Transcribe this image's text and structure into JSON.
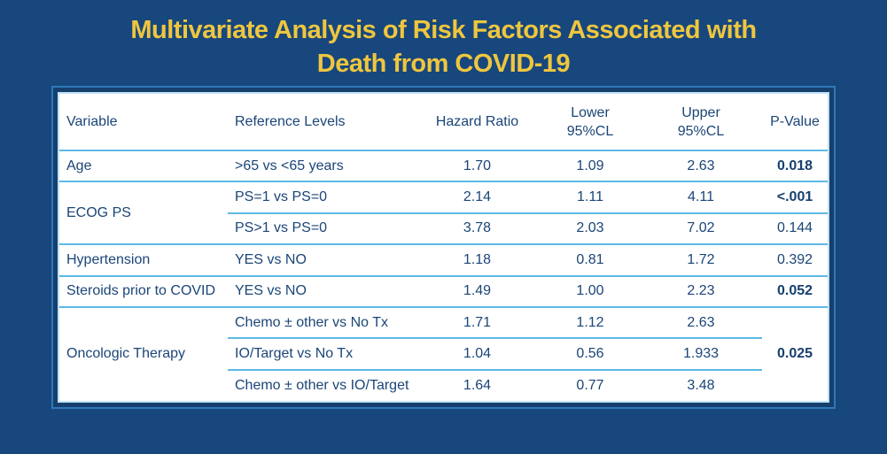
{
  "title": {
    "line1": "Multivariate Analysis of Risk Factors Associated with",
    "line2": "Death from COVID-19"
  },
  "colors": {
    "background": "#17477D",
    "title_text": "#EFC63E",
    "table_text": "#1B4577",
    "row_separator": "#5EB9E6",
    "frame_outer_line": "#2F79B9",
    "frame_border": "#163F6E",
    "frame_inner_line": "#BFE3F4",
    "table_background": "#FFFFFF"
  },
  "table": {
    "headers": {
      "variable": "Variable",
      "reference": "Reference Levels",
      "hazard_ratio": "Hazard Ratio",
      "lower_line1": "Lower",
      "lower_line2": "95%CL",
      "upper_line1": "Upper",
      "upper_line2": "95%CL",
      "p_value": "P-Value"
    },
    "groups": [
      {
        "variable": "Age",
        "rows": [
          {
            "reference": ">65 vs <65 years",
            "hr": "1.70",
            "lower": "1.09",
            "upper": "2.63",
            "p": "0.018",
            "p_bold": true
          }
        ]
      },
      {
        "variable": "ECOG PS",
        "rows": [
          {
            "reference": "PS=1 vs PS=0",
            "hr": "2.14",
            "lower": "1.11",
            "upper": "4.11",
            "p": "<.001",
            "p_bold": true
          },
          {
            "reference": "PS>1 vs PS=0",
            "hr": "3.78",
            "lower": "2.03",
            "upper": "7.02",
            "p": "0.144",
            "p_bold": false
          }
        ]
      },
      {
        "variable": "Hypertension",
        "rows": [
          {
            "reference": "YES vs NO",
            "hr": "1.18",
            "lower": "0.81",
            "upper": "1.72",
            "p": "0.392",
            "p_bold": false
          }
        ]
      },
      {
        "variable": "Steroids prior to COVID",
        "rows": [
          {
            "reference": "YES vs NO",
            "hr": "1.49",
            "lower": "1.00",
            "upper": "2.23",
            "p": "0.052",
            "p_bold": true
          }
        ]
      },
      {
        "variable": "Oncologic Therapy",
        "shared_p": "0.025",
        "shared_p_bold": true,
        "rows": [
          {
            "reference": "Chemo ± other vs No Tx",
            "hr": "1.71",
            "lower": "1.12",
            "upper": "2.63"
          },
          {
            "reference": "IO/Target vs No Tx",
            "hr": "1.04",
            "lower": "0.56",
            "upper": "1.933"
          },
          {
            "reference": "Chemo ± other vs IO/Target",
            "hr": "1.64",
            "lower": "0.77",
            "upper": "3.48"
          }
        ]
      }
    ]
  },
  "chart_data": {
    "type": "table",
    "title": "Multivariate Analysis of Risk Factors Associated with Death from COVID-19",
    "columns": [
      "Variable",
      "Reference Levels",
      "Hazard Ratio",
      "Lower 95%CL",
      "Upper 95%CL",
      "P-Value"
    ],
    "rows": [
      [
        "Age",
        ">65 vs <65 years",
        1.7,
        1.09,
        2.63,
        "0.018"
      ],
      [
        "ECOG PS",
        "PS=1 vs PS=0",
        2.14,
        1.11,
        4.11,
        "<.001"
      ],
      [
        "ECOG PS",
        "PS>1 vs PS=0",
        3.78,
        2.03,
        7.02,
        "0.144"
      ],
      [
        "Hypertension",
        "YES vs NO",
        1.18,
        0.81,
        1.72,
        "0.392"
      ],
      [
        "Steroids prior to COVID",
        "YES vs NO",
        1.49,
        1.0,
        2.23,
        "0.052"
      ],
      [
        "Oncologic Therapy",
        "Chemo ± other vs No Tx",
        1.71,
        1.12,
        2.63,
        "0.025"
      ],
      [
        "Oncologic Therapy",
        "IO/Target vs No Tx",
        1.04,
        0.56,
        1.933,
        "0.025"
      ],
      [
        "Oncologic Therapy",
        "Chemo ± other vs IO/Target",
        1.64,
        0.77,
        3.48,
        "0.025"
      ]
    ]
  }
}
